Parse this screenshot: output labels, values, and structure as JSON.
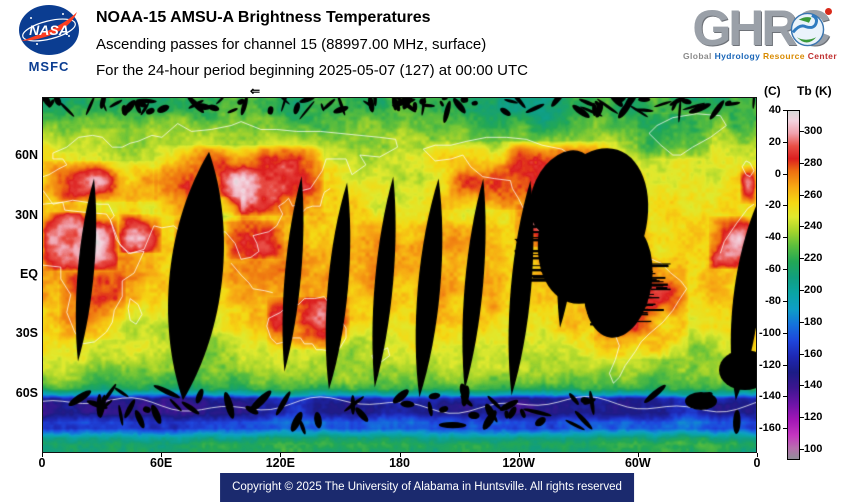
{
  "header": {
    "nasa_logo_text": "NASA",
    "nasa_sub": "MSFC",
    "title": "NOAA-15 AMSU-A Brightness Temperatures",
    "subtitle1": "Ascending passes for channel 15 (88997.00 MHz, surface)",
    "subtitle2": "For the 24-hour period beginning 2025-05-07 (127) at 00:00 UTC",
    "ghrc": {
      "acronym_prefix": "GHR",
      "acronym_c": "C",
      "tagline": [
        {
          "text": "Global",
          "color": "#8a8a8a"
        },
        {
          "text": "Hydrology",
          "color": "#1a66b8"
        },
        {
          "text": "Resource",
          "color": "#d98a00"
        },
        {
          "text": "Center",
          "color": "#c03030"
        }
      ]
    }
  },
  "map": {
    "arrow_glyph": "⇐",
    "y_axis": [
      {
        "label": "60N",
        "lat": 60
      },
      {
        "label": "30N",
        "lat": 30
      },
      {
        "label": "EQ",
        "lat": 0
      },
      {
        "label": "30S",
        "lat": -30
      },
      {
        "label": "60S",
        "lat": -60
      }
    ],
    "x_axis": [
      {
        "label": "0",
        "lon": 0
      },
      {
        "label": "60E",
        "lon": 60
      },
      {
        "label": "120E",
        "lon": 120
      },
      {
        "label": "180",
        "lon": 180
      },
      {
        "label": "120W",
        "lon": 240
      },
      {
        "label": "60W",
        "lon": 300
      },
      {
        "label": "0",
        "lon": 360
      }
    ]
  },
  "legend": {
    "header_c": "(C)",
    "header_k": "Tb (K)",
    "k_min": 93.15,
    "k_max": 313.15,
    "c_ticks": [
      40,
      20,
      0,
      -20,
      -40,
      -60,
      -80,
      -100,
      -120,
      -140,
      -160
    ],
    "k_ticks": [
      300,
      280,
      260,
      240,
      220,
      200,
      180,
      160,
      140,
      120,
      100
    ],
    "stops": [
      {
        "k": 313,
        "c": "#d9d9d9"
      },
      {
        "k": 307,
        "c": "#f3d3de"
      },
      {
        "k": 299,
        "c": "#f0a2ae"
      },
      {
        "k": 291,
        "c": "#e84f46"
      },
      {
        "k": 283,
        "c": "#dc1f1f"
      },
      {
        "k": 275,
        "c": "#ee7011"
      },
      {
        "k": 265,
        "c": "#f7a913"
      },
      {
        "k": 255,
        "c": "#f5d813"
      },
      {
        "k": 246,
        "c": "#dfe92e"
      },
      {
        "k": 237,
        "c": "#a4d42c"
      },
      {
        "k": 228,
        "c": "#5cbe3c"
      },
      {
        "k": 218,
        "c": "#23a855"
      },
      {
        "k": 208,
        "c": "#119e7e"
      },
      {
        "k": 198,
        "c": "#0aa4a4"
      },
      {
        "k": 188,
        "c": "#0e9ec6"
      },
      {
        "k": 178,
        "c": "#1472dc"
      },
      {
        "k": 168,
        "c": "#1e46dc"
      },
      {
        "k": 158,
        "c": "#1e28b4"
      },
      {
        "k": 148,
        "c": "#1c1c86"
      },
      {
        "k": 138,
        "c": "#3c1690"
      },
      {
        "k": 128,
        "c": "#6d14a8"
      },
      {
        "k": 118,
        "c": "#a216b6"
      },
      {
        "k": 108,
        "c": "#c437c0"
      },
      {
        "k": 100,
        "c": "#b66fae"
      },
      {
        "k": 93,
        "c": "#8f8f97"
      }
    ]
  },
  "footer": {
    "copyright": "Copyright © 2025 The University of Alabama in Huntsville. All rights reserved",
    "bar_color": "#1b2a6e"
  }
}
